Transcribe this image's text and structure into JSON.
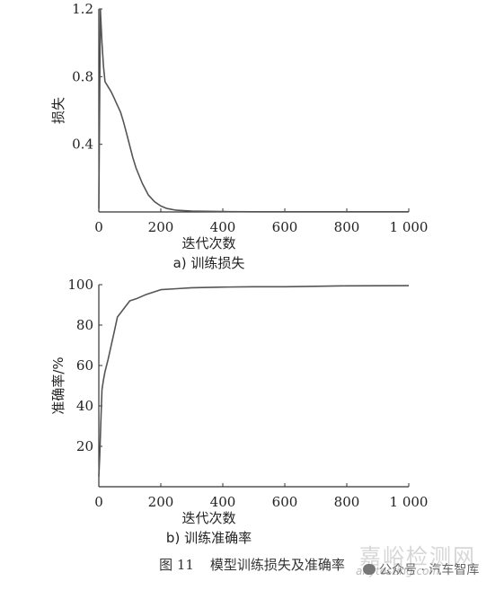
{
  "chart_data": [
    {
      "type": "line",
      "caption": "a) 训练损失",
      "xlabel": "迭代次数",
      "ylabel": "损失",
      "xlim": [
        0,
        1000
      ],
      "ylim": [
        0,
        1.2
      ],
      "xticks": [
        0,
        200,
        400,
        600,
        800,
        1000
      ],
      "xtick_labels": [
        "0",
        "200",
        "400",
        "600",
        "800",
        "1 000"
      ],
      "yticks": [
        0.4,
        0.8,
        1.2
      ],
      "ytick_labels": [
        "0.4",
        "0.8",
        "1.2"
      ],
      "grid": false,
      "series": [
        {
          "color": "#555555",
          "x": [
            0,
            5,
            10,
            15,
            20,
            30,
            40,
            50,
            60,
            70,
            80,
            90,
            100,
            110,
            120,
            140,
            160,
            180,
            200,
            220,
            250,
            300,
            400,
            500,
            600,
            800,
            1000
          ],
          "y": [
            0.02,
            1.2,
            1.0,
            0.86,
            0.77,
            0.74,
            0.71,
            0.67,
            0.63,
            0.59,
            0.53,
            0.46,
            0.39,
            0.32,
            0.26,
            0.17,
            0.1,
            0.06,
            0.035,
            0.02,
            0.01,
            0.005,
            0.002,
            0.001,
            0.001,
            0.001,
            0.001
          ]
        }
      ]
    },
    {
      "type": "line",
      "caption": "b) 训练准确率",
      "xlabel": "迭代次数",
      "ylabel": "准确率/%",
      "xlim": [
        0,
        1000
      ],
      "ylim": [
        0,
        100
      ],
      "xticks": [
        0,
        200,
        400,
        600,
        800,
        1000
      ],
      "xtick_labels": [
        "0",
        "200",
        "400",
        "600",
        "800",
        "1 000"
      ],
      "yticks": [
        20,
        40,
        60,
        80,
        100
      ],
      "ytick_labels": [
        "20",
        "40",
        "60",
        "80",
        "100"
      ],
      "grid": false,
      "series": [
        {
          "color": "#555555",
          "x": [
            0,
            3,
            6,
            10,
            15,
            20,
            30,
            40,
            50,
            60,
            70,
            80,
            100,
            120,
            150,
            200,
            250,
            300,
            400,
            500,
            600,
            700,
            800,
            1000
          ],
          "y": [
            5,
            15,
            30,
            48,
            53,
            57,
            63,
            70,
            77,
            84,
            86,
            88,
            92,
            93,
            95,
            97.5,
            98,
            98.5,
            98.8,
            99,
            99,
            99.2,
            99.4,
            99.5
          ]
        }
      ]
    }
  ],
  "figure_caption": {
    "number": "图 11",
    "title": "模型训练损失及准确率"
  },
  "watermark": {
    "site": "嘉峪检测网",
    "site_url": "anytesting.com",
    "account": "公众号 · 汽车智库",
    "icon": "wechat-icon"
  }
}
